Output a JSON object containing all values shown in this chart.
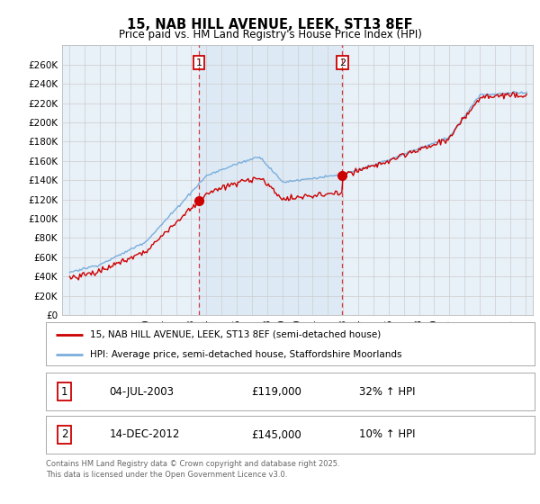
{
  "title": "15, NAB HILL AVENUE, LEEK, ST13 8EF",
  "subtitle": "Price paid vs. HM Land Registry's House Price Index (HPI)",
  "background_color": "#ffffff",
  "plot_bg_color": "#e8f0f8",
  "grid_color": "#cccccc",
  "ylim": [
    0,
    280000
  ],
  "yticks": [
    0,
    20000,
    40000,
    60000,
    80000,
    100000,
    120000,
    140000,
    160000,
    180000,
    200000,
    220000,
    240000,
    260000
  ],
  "ytick_labels": [
    "£0",
    "£20K",
    "£40K",
    "£60K",
    "£80K",
    "£100K",
    "£120K",
    "£140K",
    "£160K",
    "£180K",
    "£200K",
    "£220K",
    "£240K",
    "£260K"
  ],
  "sale1_date": 2003.5,
  "sale1_price": 119000,
  "sale1_label": "1",
  "sale1_info": "04-JUL-2003",
  "sale1_amount": "£119,000",
  "sale1_hpi": "32% ↑ HPI",
  "sale2_date": 2012.95,
  "sale2_price": 145000,
  "sale2_label": "2",
  "sale2_info": "14-DEC-2012",
  "sale2_amount": "£145,000",
  "sale2_hpi": "10% ↑ HPI",
  "hpi_line_color": "#7aaedc",
  "price_line_color": "#cc0000",
  "sale_marker_color": "#cc0000",
  "shade_color": "#ddeaf5",
  "legend_line1": "15, NAB HILL AVENUE, LEEK, ST13 8EF (semi-detached house)",
  "legend_line2": "HPI: Average price, semi-detached house, Staffordshire Moorlands",
  "footnote": "Contains HM Land Registry data © Crown copyright and database right 2025.\nThis data is licensed under the Open Government Licence v3.0.",
  "xlim_start": 1994.5,
  "xlim_end": 2025.5
}
